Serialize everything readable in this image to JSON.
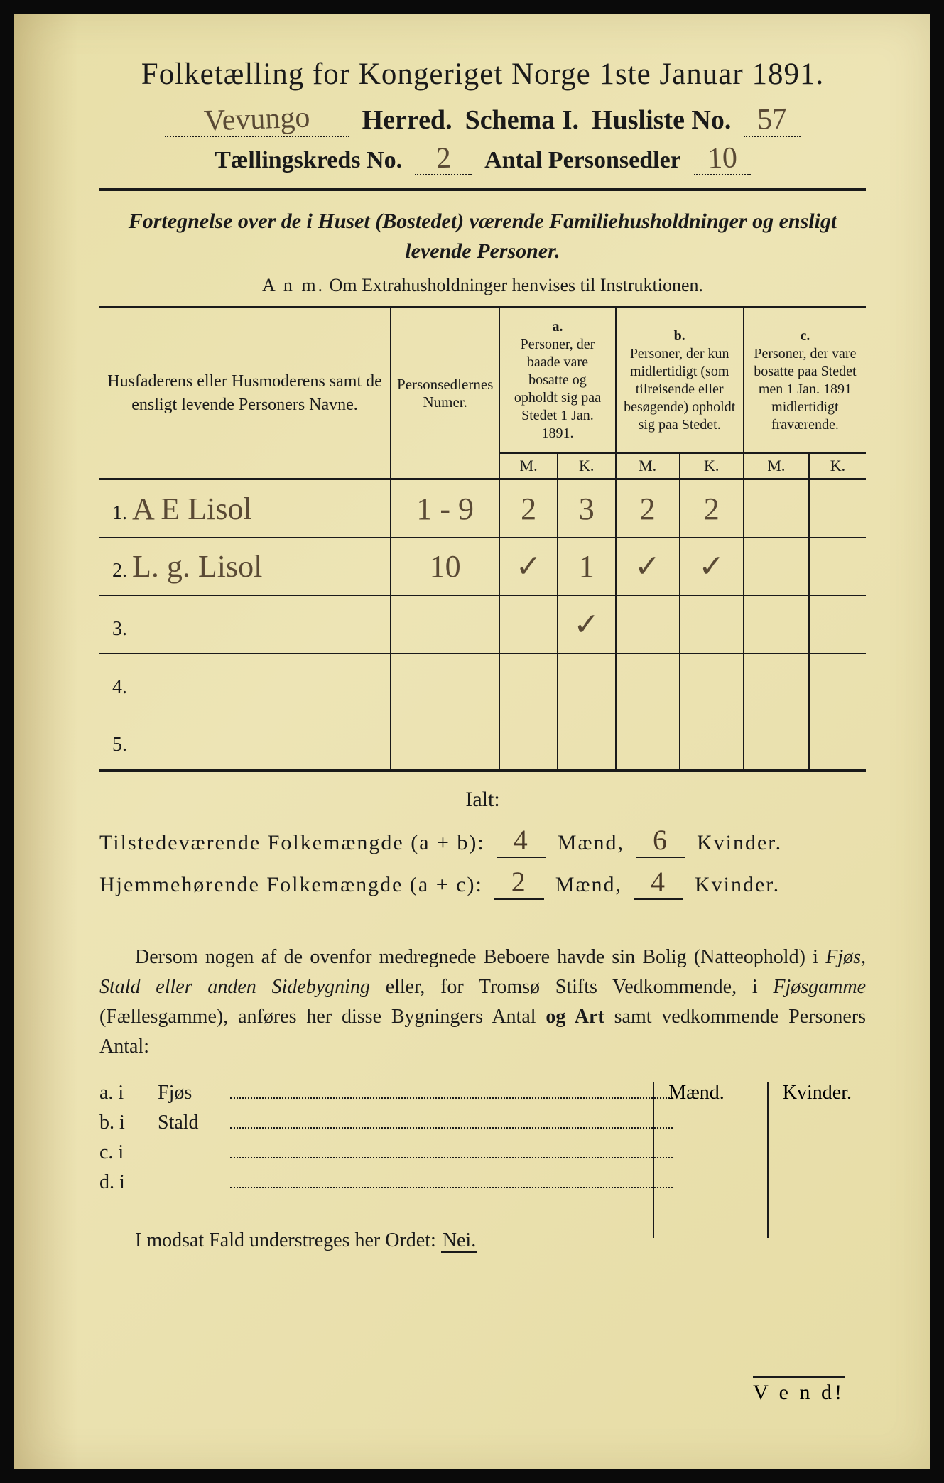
{
  "colors": {
    "paper_bg": "#e8dfa8",
    "ink": "#1a1a1a",
    "handwriting": "#5a4a35"
  },
  "header": {
    "title": "Folketælling for Kongeriget Norge 1ste Januar 1891.",
    "herred_hand": "Vevungo",
    "herred_label": "Herred.",
    "schema_label": "Schema I.",
    "husliste_label": "Husliste No.",
    "husliste_no": "57",
    "kreds_label": "Tællingskreds No.",
    "kreds_no": "2",
    "personsedler_label": "Antal Personsedler",
    "personsedler_no": "10"
  },
  "subtitle": {
    "line1": "Fortegnelse over de i Huset (Bostedet) værende Familiehusholdninger og ensligt",
    "line2": "levende Personer.",
    "anm_label": "A n m.",
    "anm_text": "Om Extrahusholdninger henvises til Instruktionen."
  },
  "table": {
    "headers": {
      "names": "Husfaderens eller Husmoderens samt de ensligt levende Personers Navne.",
      "numer": "Personsedlernes Numer.",
      "a_label": "a.",
      "a_text": "Personer, der baade vare bosatte og opholdt sig paa Stedet 1 Jan. 1891.",
      "b_label": "b.",
      "b_text": "Personer, der kun midlertidigt (som tilreisende eller besøgende) opholdt sig paa Stedet.",
      "c_label": "c.",
      "c_text": "Personer, der vare bosatte paa Stedet men 1 Jan. 1891 midlertidigt fraværende.",
      "m": "M.",
      "k": "K."
    },
    "rows": [
      {
        "n": "1.",
        "name": "A E Lisol",
        "numer": "1 - 9",
        "a_m": "2",
        "a_k": "3",
        "b_m": "2",
        "b_k": "2",
        "c_m": "",
        "c_k": ""
      },
      {
        "n": "2.",
        "name": "L. g. Lisol",
        "numer": "10",
        "a_m": "✓",
        "a_k": "1",
        "b_m": "✓",
        "b_k": "✓",
        "c_m": "",
        "c_k": ""
      },
      {
        "n": "3.",
        "name": "",
        "numer": "",
        "a_m": "",
        "a_k": "✓",
        "b_m": "",
        "b_k": "",
        "c_m": "",
        "c_k": ""
      },
      {
        "n": "4.",
        "name": "",
        "numer": "",
        "a_m": "",
        "a_k": "",
        "b_m": "",
        "b_k": "",
        "c_m": "",
        "c_k": ""
      },
      {
        "n": "5.",
        "name": "",
        "numer": "",
        "a_m": "",
        "a_k": "",
        "b_m": "",
        "b_k": "",
        "c_m": "",
        "c_k": ""
      }
    ]
  },
  "totals": {
    "ialt": "Ialt:",
    "line1_label": "Tilstedeværende Folkemængde (a + b):",
    "line1_m": "4",
    "line1_k": "6",
    "line2_label": "Hjemmehørende Folkemængde (a + c):",
    "line2_m": "2",
    "line2_k": "4",
    "maend": "Mænd,",
    "kvinder": "Kvinder."
  },
  "paragraph": {
    "text1": "Dersom nogen af de ovenfor medregnede Beboere havde sin Bolig (Natteophold) i ",
    "it1": "Fjøs, Stald eller anden Sidebygning",
    "text2": " eller, for Tromsø Stifts Vedkommende, i ",
    "it2": "Fjøsgamme",
    "text3": " (Fællesgamme), anføres her disse Bygningers Antal ",
    "bold": "og Art",
    "text4": " samt vedkommende Personers Antal:"
  },
  "building_list": {
    "maend": "Mænd.",
    "kvinder": "Kvinder.",
    "rows": [
      {
        "label": "a.  i",
        "name": "Fjøs"
      },
      {
        "label": "b.  i",
        "name": "Stald"
      },
      {
        "label": "c.  i",
        "name": ""
      },
      {
        "label": "d.  i",
        "name": ""
      }
    ]
  },
  "footer": {
    "modsat": "I modsat Fald understreges her Ordet:",
    "nei": "Nei.",
    "vend": "V e n d!"
  }
}
